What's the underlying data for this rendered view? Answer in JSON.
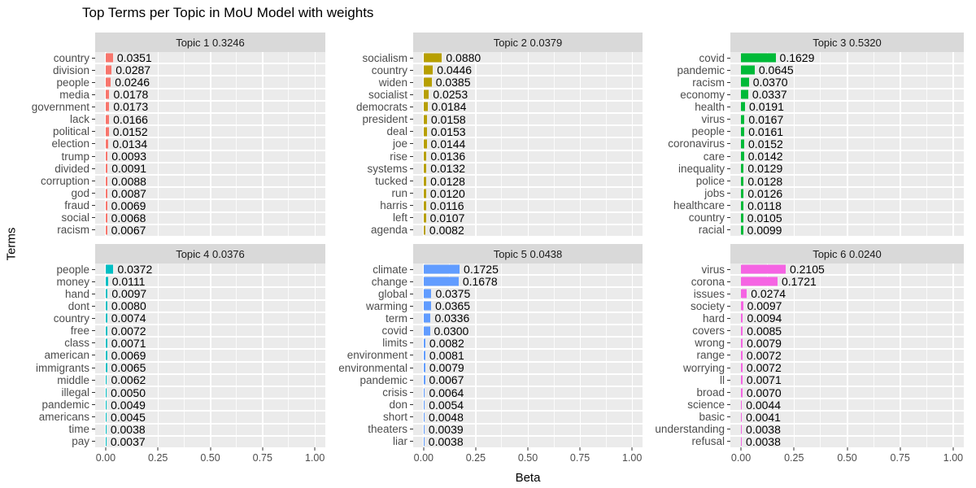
{
  "chart_data": {
    "type": "bar",
    "orientation": "horizontal",
    "title": "Top Terms per Topic in MoU Model with weights",
    "xlabel": "Beta",
    "ylabel": "Terms",
    "xlim": [
      0,
      1.0
    ],
    "x_ticks": {
      "values": [
        0,
        0.25,
        0.5,
        0.75,
        1.0
      ],
      "labels": [
        "0.00",
        "0.25",
        "0.50",
        "0.75",
        "1.00"
      ]
    },
    "grid": "white major gridlines every 0.25 and minor every 0.125 on grey panel; horizontal white lines between term rows",
    "legend": "none",
    "value_label_format": "4 decimals, printed right of each bar",
    "facet_layout": {
      "rows": 2,
      "cols": 3
    },
    "facets": [
      {
        "strip_label": "Topic 1 0.3246",
        "topic": "Topic 1",
        "weight": 0.3246,
        "bar_color": "#F8766D",
        "terms": [
          "country",
          "division",
          "people",
          "media",
          "government",
          "lack",
          "political",
          "election",
          "trump",
          "divided",
          "corruption",
          "god",
          "fraud",
          "social",
          "racism"
        ],
        "betas": [
          0.0351,
          0.0287,
          0.0246,
          0.0178,
          0.0173,
          0.0166,
          0.0152,
          0.0134,
          0.0093,
          0.0091,
          0.0088,
          0.0087,
          0.0069,
          0.0068,
          0.0067
        ]
      },
      {
        "strip_label": "Topic 2 0.0379",
        "topic": "Topic 2",
        "weight": 0.0379,
        "bar_color": "#B79F00",
        "terms": [
          "socialism",
          "country",
          "widen",
          "socialist",
          "democrats",
          "president",
          "deal",
          "joe",
          "rise",
          "systems",
          "tucked",
          "run",
          "harris",
          "left",
          "agenda"
        ],
        "betas": [
          0.088,
          0.0446,
          0.0385,
          0.0253,
          0.0184,
          0.0158,
          0.0153,
          0.0144,
          0.0136,
          0.0132,
          0.0128,
          0.012,
          0.0116,
          0.0107,
          0.0082
        ]
      },
      {
        "strip_label": "Topic 3 0.5320",
        "topic": "Topic 3",
        "weight": 0.532,
        "bar_color": "#00BA38",
        "terms": [
          "covid",
          "pandemic",
          "racism",
          "economy",
          "health",
          "virus",
          "people",
          "coronavirus",
          "care",
          "inequality",
          "police",
          "jobs",
          "healthcare",
          "country",
          "racial"
        ],
        "betas": [
          0.1629,
          0.0645,
          0.037,
          0.0337,
          0.0191,
          0.0167,
          0.0161,
          0.0152,
          0.0142,
          0.0129,
          0.0128,
          0.0126,
          0.0118,
          0.0105,
          0.0099
        ]
      },
      {
        "strip_label": "Topic 4 0.0376",
        "topic": "Topic 4",
        "weight": 0.0376,
        "bar_color": "#00BFC4",
        "terms": [
          "people",
          "money",
          "hand",
          "dont",
          "country",
          "free",
          "class",
          "american",
          "immigrants",
          "middle",
          "illegal",
          "pandemic",
          "americans",
          "time",
          "pay"
        ],
        "betas": [
          0.0372,
          0.0111,
          0.0097,
          0.008,
          0.0074,
          0.0072,
          0.0071,
          0.0069,
          0.0065,
          0.0062,
          0.005,
          0.0049,
          0.0045,
          0.0038,
          0.0037
        ]
      },
      {
        "strip_label": "Topic 5 0.0438",
        "topic": "Topic 5",
        "weight": 0.0438,
        "bar_color": "#619CFF",
        "terms": [
          "climate",
          "change",
          "global",
          "warming",
          "term",
          "covid",
          "limits",
          "environment",
          "environmental",
          "pandemic",
          "crisis",
          "don",
          "short",
          "theaters",
          "liar"
        ],
        "betas": [
          0.1725,
          0.1678,
          0.0375,
          0.0365,
          0.0336,
          0.03,
          0.0082,
          0.0081,
          0.0079,
          0.0067,
          0.0064,
          0.0054,
          0.0048,
          0.0039,
          0.0038
        ]
      },
      {
        "strip_label": "Topic 6 0.0240",
        "topic": "Topic 6",
        "weight": 0.024,
        "bar_color": "#F564E3",
        "terms": [
          "virus",
          "corona",
          "issues",
          "society",
          "hard",
          "covers",
          "wrong",
          "range",
          "worrying",
          "ll",
          "broad",
          "science",
          "basic",
          "understanding",
          "refusal"
        ],
        "betas": [
          0.2105,
          0.1721,
          0.0274,
          0.0097,
          0.0094,
          0.0085,
          0.0079,
          0.0072,
          0.0072,
          0.0071,
          0.007,
          0.0044,
          0.0041,
          0.0038,
          0.0038
        ]
      }
    ],
    "colors": {
      "panel_background": "#EBEBEB",
      "strip_background": "#D9D9D9",
      "gridline": "#FFFFFF",
      "axis_text": "#4D4D4D",
      "value_text": "#000000",
      "title_text": "#000000"
    }
  }
}
